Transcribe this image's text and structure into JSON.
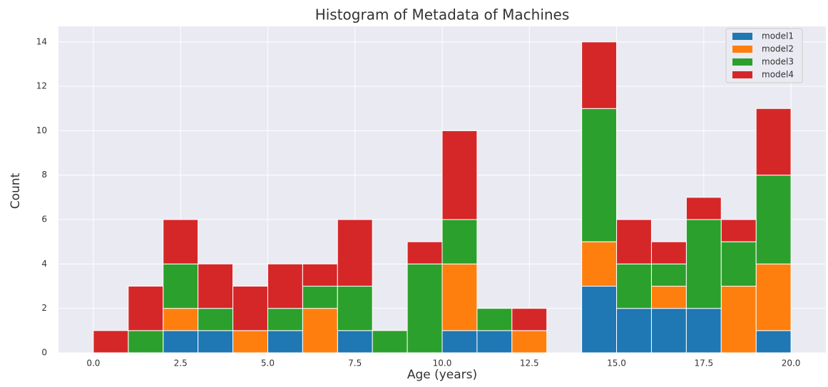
{
  "chart_data": {
    "type": "histogram",
    "stacked": true,
    "title": "Histogram of Metadata of Machines",
    "xlabel": "Age (years)",
    "ylabel": "Count",
    "bins": [
      0,
      1,
      2,
      3,
      4,
      5,
      6,
      7,
      8,
      9,
      10,
      11,
      12,
      13,
      14,
      15,
      16,
      17,
      18,
      19,
      20
    ],
    "series": [
      {
        "name": "model1",
        "color": "#1f77b4",
        "values": [
          0,
          0,
          1,
          1,
          0,
          1,
          0,
          1,
          0,
          0,
          1,
          1,
          0,
          0,
          3,
          2,
          2,
          2,
          0,
          1
        ]
      },
      {
        "name": "model2",
        "color": "#ff7f0e",
        "values": [
          0,
          0,
          1,
          0,
          1,
          0,
          2,
          0,
          0,
          0,
          3,
          0,
          1,
          0,
          2,
          0,
          1,
          0,
          3,
          3
        ]
      },
      {
        "name": "model3",
        "color": "#2ca02c",
        "values": [
          0,
          1,
          2,
          1,
          0,
          1,
          1,
          2,
          1,
          4,
          2,
          1,
          0,
          0,
          6,
          2,
          1,
          4,
          2,
          4
        ]
      },
      {
        "name": "model4",
        "color": "#d62728",
        "values": [
          1,
          2,
          2,
          2,
          2,
          2,
          1,
          3,
          0,
          1,
          4,
          0,
          1,
          0,
          3,
          2,
          1,
          1,
          1,
          3
        ]
      }
    ],
    "xlim": [
      -1,
      21
    ],
    "xticks": [
      {
        "value": 0,
        "label": "0.0"
      },
      {
        "value": 2.5,
        "label": "2.5"
      },
      {
        "value": 5,
        "label": "5.0"
      },
      {
        "value": 7.5,
        "label": "7.5"
      },
      {
        "value": 10,
        "label": "10.0"
      },
      {
        "value": 12.5,
        "label": "12.5"
      },
      {
        "value": 15,
        "label": "15.0"
      },
      {
        "value": 17.5,
        "label": "17.5"
      },
      {
        "value": 20,
        "label": "20.0"
      }
    ],
    "ylim": [
      0,
      14.7
    ],
    "yticks": [
      0,
      2,
      4,
      6,
      8,
      10,
      12,
      14
    ],
    "grid": true,
    "legend": "upper right"
  }
}
